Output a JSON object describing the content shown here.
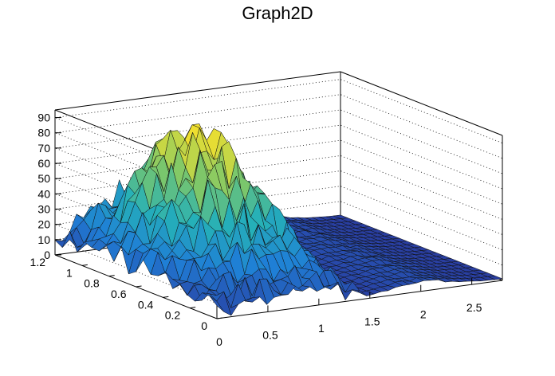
{
  "chart_data": {
    "type": "surface",
    "title": "Graph2D",
    "xlabel": "",
    "ylabel": "",
    "zlabel": "",
    "xlim": [
      0,
      2.8
    ],
    "ylim": [
      0,
      1.2
    ],
    "zlim": [
      0,
      95
    ],
    "x_ticks": [
      "0",
      "0.5",
      "1",
      "1.5",
      "2",
      "2.5"
    ],
    "y_ticks": [
      "0",
      "0.2",
      "0.4",
      "0.6",
      "0.8",
      "1",
      "1.2"
    ],
    "z_ticks": [
      "0",
      "10",
      "20",
      "30",
      "40",
      "50",
      "60",
      "70",
      "80",
      "90"
    ],
    "grid": "z gridlines on back walls (dotted)",
    "colormap": [
      "#2a3a9e",
      "#1f7fd6",
      "#25b0b8",
      "#7cc76a",
      "#f2e02e"
    ],
    "surface_description": "Noisy sampled surface with maxima near x=0.75, y=0.9 (about 85) and lesser spikes along the low-x region; flat region near z=0 for x>1.5"
  }
}
